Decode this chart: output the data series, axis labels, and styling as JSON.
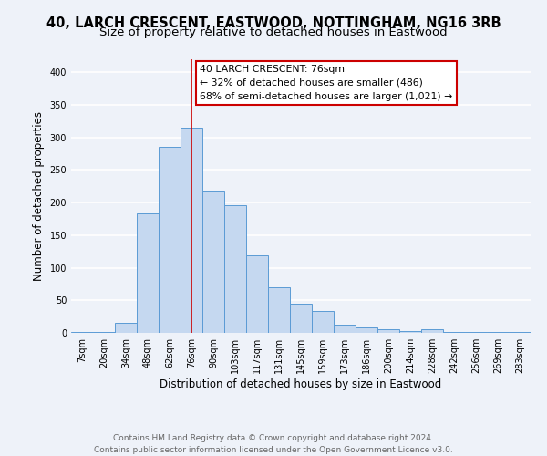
{
  "title": "40, LARCH CRESCENT, EASTWOOD, NOTTINGHAM, NG16 3RB",
  "subtitle": "Size of property relative to detached houses in Eastwood",
  "xlabel": "Distribution of detached houses by size in Eastwood",
  "ylabel": "Number of detached properties",
  "bin_labels": [
    "7sqm",
    "20sqm",
    "34sqm",
    "48sqm",
    "62sqm",
    "76sqm",
    "90sqm",
    "103sqm",
    "117sqm",
    "131sqm",
    "145sqm",
    "159sqm",
    "173sqm",
    "186sqm",
    "200sqm",
    "214sqm",
    "228sqm",
    "242sqm",
    "256sqm",
    "269sqm",
    "283sqm"
  ],
  "bar_heights": [
    2,
    1,
    16,
    183,
    286,
    315,
    218,
    196,
    119,
    70,
    45,
    33,
    12,
    8,
    6,
    3,
    5,
    2,
    1,
    1,
    1
  ],
  "bar_color": "#c5d8f0",
  "bar_edge_color": "#5b9bd5",
  "vline_x_index": 5,
  "vline_color": "#cc0000",
  "annotation_title": "40 LARCH CRESCENT: 76sqm",
  "annotation_line1": "← 32% of detached houses are smaller (486)",
  "annotation_line2": "68% of semi-detached houses are larger (1,021) →",
  "annotation_box_color": "#ffffff",
  "annotation_box_edge": "#cc0000",
  "ylim": [
    0,
    420
  ],
  "yticks": [
    0,
    50,
    100,
    150,
    200,
    250,
    300,
    350,
    400
  ],
  "footer_line1": "Contains HM Land Registry data © Crown copyright and database right 2024.",
  "footer_line2": "Contains public sector information licensed under the Open Government Licence v3.0.",
  "bg_color": "#eef2f9",
  "plot_bg_color": "#eef2f9",
  "grid_color": "#ffffff",
  "title_fontsize": 10.5,
  "subtitle_fontsize": 9.5,
  "axis_label_fontsize": 8.5,
  "tick_fontsize": 7,
  "footer_fontsize": 6.5,
  "annotation_fontsize": 7.8
}
